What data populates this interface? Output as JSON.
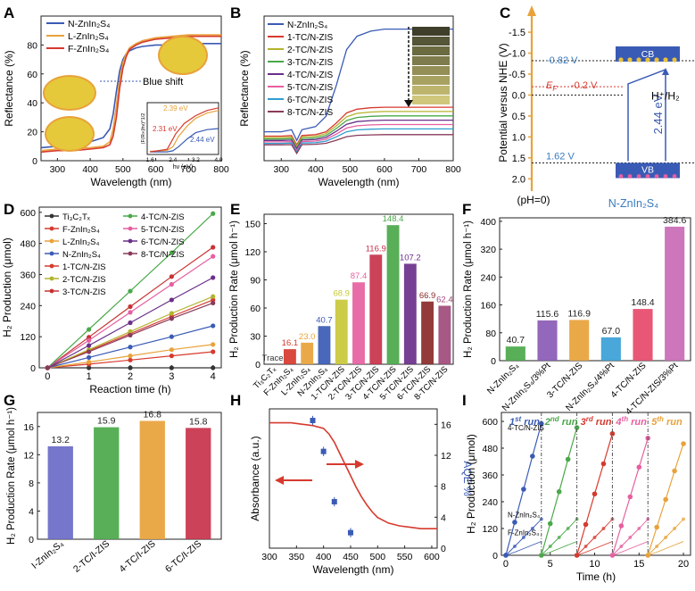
{
  "panel_letters": [
    "A",
    "B",
    "C",
    "D",
    "E",
    "F",
    "G",
    "H",
    "I"
  ],
  "chart_data": [
    {
      "panel": "A",
      "type": "line",
      "xlabel": "Wavelength (nm)",
      "ylabel": "Reflectance (%)",
      "xlim": [
        250,
        800
      ],
      "ylim": [
        0,
        100
      ],
      "xticks": [
        300,
        400,
        500,
        600,
        700,
        800
      ],
      "yticks": [
        0,
        20,
        40,
        60,
        80
      ],
      "legend_position": "top-left",
      "series": [
        {
          "name": "N-ZnIn₂S₄",
          "color": "#3a5bb5",
          "x": [
            250,
            300,
            350,
            400,
            440,
            460,
            470,
            480,
            490,
            500,
            510,
            520,
            540,
            560,
            600,
            650,
            700,
            750,
            800
          ],
          "y": [
            9,
            10,
            11,
            13,
            16,
            22,
            32,
            48,
            62,
            70,
            74,
            76,
            78,
            79,
            80,
            80,
            81,
            81,
            81
          ]
        },
        {
          "name": "L-ZnIn₂S₄",
          "color": "#e8a23a",
          "x": [
            250,
            300,
            350,
            400,
            440,
            460,
            470,
            480,
            490,
            500,
            510,
            520,
            540,
            560,
            600,
            650,
            700,
            750,
            800
          ],
          "y": [
            7,
            8,
            8,
            9,
            10,
            13,
            22,
            38,
            56,
            68,
            74,
            78,
            81,
            83,
            85,
            86,
            87,
            87,
            87
          ]
        },
        {
          "name": "F-ZnIn₂S₄",
          "color": "#d63a2e",
          "x": [
            250,
            300,
            350,
            400,
            440,
            460,
            470,
            480,
            490,
            500,
            510,
            520,
            540,
            560,
            600,
            650,
            700,
            750,
            800
          ],
          "y": [
            6,
            7,
            7,
            8,
            9,
            11,
            17,
            30,
            50,
            64,
            72,
            77,
            80,
            82,
            84,
            85,
            86,
            86,
            86
          ]
        }
      ],
      "annotations": [
        "Blue shift"
      ],
      "inset": {
        "xlabel": "hν (eV)",
        "ylabel": "(F(R∞)hν)^1/2",
        "xticks": [
          1.6,
          2.4,
          3.2,
          4.0
        ],
        "xlim": [
          1.5,
          4.0
        ],
        "labels": [
          {
            "text": "2.39 eV",
            "color": "#e8a23a"
          },
          {
            "text": "2.31 eV",
            "color": "#d63a2e"
          },
          {
            "text": "2.44 eV",
            "color": "#3a5bb5"
          }
        ],
        "series": [
          {
            "color": "#3a5bb5",
            "x": [
              1.6,
              2.2,
              2.4,
              2.6,
              2.9,
              3.2,
              3.6,
              4.0
            ],
            "y": [
              0.05,
              0.05,
              0.07,
              0.15,
              0.3,
              0.42,
              0.48,
              0.5
            ]
          },
          {
            "color": "#e8a23a",
            "x": [
              1.6,
              2.2,
              2.4,
              2.6,
              2.9,
              3.2,
              3.6,
              4.0
            ],
            "y": [
              0.06,
              0.08,
              0.15,
              0.35,
              0.55,
              0.7,
              0.8,
              0.85
            ]
          },
          {
            "color": "#d63a2e",
            "x": [
              1.6,
              2.2,
              2.3,
              2.5,
              2.8,
              3.2,
              3.6,
              4.0
            ],
            "y": [
              0.05,
              0.1,
              0.2,
              0.4,
              0.6,
              0.75,
              0.85,
              0.9
            ]
          }
        ]
      }
    },
    {
      "panel": "B",
      "type": "line",
      "xlabel": "Wavelength (nm)",
      "ylabel": "Reflectance (%)",
      "xlim": [
        250,
        800
      ],
      "ylim": [
        0,
        100
      ],
      "xticks": [
        300,
        400,
        500,
        600,
        700,
        800
      ],
      "legend_position": "top-left",
      "series": [
        {
          "name": "N-ZnIn₂S₄",
          "color": "#3a5bb5",
          "plateau": 91,
          "edge": 20
        },
        {
          "name": "1-TC/N-ZIS",
          "color": "#d63a2e",
          "plateau": 37,
          "edge": 17
        },
        {
          "name": "2-TC/N-ZIS",
          "color": "#b3b32e",
          "plateau": 34,
          "edge": 16
        },
        {
          "name": "3-TC/N-ZIS",
          "color": "#4aa84a",
          "plateau": 31,
          "edge": 15
        },
        {
          "name": "4-TC/N-ZIS",
          "color": "#6a2f8a",
          "plateau": 28,
          "edge": 14
        },
        {
          "name": "5-TC/N-ZIS",
          "color": "#e65fa0",
          "plateau": 25,
          "edge": 13
        },
        {
          "name": "6-TC/N-ZIS",
          "color": "#2e9fcf",
          "plateau": 22,
          "edge": 12
        },
        {
          "name": "8-TC/N-ZIS",
          "color": "#8a3a5a",
          "plateau": 18,
          "edge": 11
        }
      ]
    },
    {
      "panel": "C",
      "type": "diagram",
      "ylabel": "Potential versus NHE (V)",
      "ylim": [
        -1.8,
        2.1
      ],
      "yticks": [
        -1.5,
        -1.0,
        -0.5,
        0.0,
        0.5,
        1.0,
        1.5,
        2.0
      ],
      "cb_label": "CB",
      "vb_label": "VB",
      "cb_value": "-0.82 V",
      "ef_value": "-0.2 V",
      "ef_label": "E",
      "ef_sub": "F",
      "vb_value": "1.62 V",
      "gap_label": "2.44 eV",
      "h_label": "H⁺/H₂",
      "ph_label": "(pH=0)",
      "material_label": "N-ZnIn₂S₄",
      "cb_level": -0.82,
      "vb_level": 1.62,
      "ef_level": -0.2
    },
    {
      "panel": "D",
      "type": "scatter",
      "xlabel": "Reaction time (h)",
      "ylabel": "H₂ Production (μmol)",
      "xlim": [
        -0.2,
        4.2
      ],
      "ylim": [
        0,
        620
      ],
      "xticks": [
        0,
        1,
        2,
        3,
        4
      ],
      "yticks": [
        0,
        120,
        240,
        360,
        480,
        600
      ],
      "x": [
        0,
        1,
        2,
        3,
        4
      ],
      "series": [
        {
          "name": "Ti₃C₂Tₓ",
          "color": "#333333",
          "values": [
            0,
            0,
            0,
            0,
            0
          ]
        },
        {
          "name": "F-ZnIn₂S₄",
          "color": "#d63a2e",
          "values": [
            0,
            14,
            30,
            46,
            62
          ]
        },
        {
          "name": "L-ZnIn₂S₄",
          "color": "#e8a23a",
          "values": [
            0,
            22,
            46,
            70,
            90
          ]
        },
        {
          "name": "N-ZnIn₂S₄",
          "color": "#3a5bb5",
          "values": [
            0,
            40,
            80,
            120,
            162
          ]
        },
        {
          "name": "1-TC/N-ZIS",
          "color": "#d63a2e",
          "values": [
            0,
            66,
            132,
            198,
            262
          ]
        },
        {
          "name": "2-TC/N-ZIS",
          "color": "#b3b32e",
          "values": [
            0,
            70,
            140,
            210,
            275
          ]
        },
        {
          "name": "3-TC/N-ZIS",
          "color": "#c83232",
          "values": [
            0,
            118,
            236,
            352,
            465
          ]
        },
        {
          "name": "4-TC/N-ZIS",
          "color": "#4aa84a",
          "values": [
            0,
            148,
            296,
            444,
            595
          ]
        },
        {
          "name": "5-TC/N-ZIS",
          "color": "#e65fa0",
          "values": [
            0,
            106,
            214,
            322,
            430
          ]
        },
        {
          "name": "6-TC/N-ZIS",
          "color": "#6a2f8a",
          "values": [
            0,
            86,
            174,
            262,
            348
          ]
        },
        {
          "name": "8-TC/N-ZIS",
          "color": "#8a3a5a",
          "values": [
            0,
            62,
            126,
            190,
            250
          ]
        }
      ]
    },
    {
      "panel": "E",
      "type": "bar",
      "ylabel": "H₂ Production Rate (μmol h⁻¹)",
      "ylim": [
        0,
        160
      ],
      "yticks": [
        0,
        30,
        60,
        90,
        120,
        150
      ],
      "categories": [
        "Ti₃C₂Tₓ",
        "F-ZnIn₂S₄",
        "L-ZnIn₂S₄",
        "N-ZnIn₂S₄",
        "1-TC/N-ZIS",
        "2-TC/N-ZIS",
        "3-TC/N-ZIS",
        "4-TC/N-ZIS",
        "5-TC/N-ZIS",
        "6-TC/N-ZIS",
        "8-TC/N-ZIS"
      ],
      "values": [
        0,
        16.1,
        23.0,
        40.7,
        68.9,
        87.4,
        116.9,
        148.4,
        107.2,
        66.9,
        62.4
      ],
      "value_labels": [
        "Trace",
        "16.1",
        "23.0",
        "40.7",
        "68.9",
        "87.4",
        "116.9",
        "148.4",
        "107.2",
        "66.9",
        "62.4"
      ],
      "colors": [
        "#333333",
        "#d63a2e",
        "#e8a23a",
        "#3a5bb5",
        "#c8c838",
        "#e65fa0",
        "#c8324a",
        "#4aa84a",
        "#6a2f8a",
        "#8a2a2a",
        "#a04a7a"
      ]
    },
    {
      "panel": "F",
      "type": "bar",
      "ylabel": "H₂ Production Rate (μmol h⁻¹)",
      "ylim": [
        0,
        410
      ],
      "yticks": [
        0,
        80,
        160,
        240,
        320,
        400
      ],
      "categories": [
        "N-ZnIn₂S₄",
        "N-ZnIn₂S₄/3%Pt",
        "3-TC/N-ZIS",
        "N-ZnIn₂S₄/4%Pt",
        "4-TC/N-ZIS",
        "4-TC/N-ZIS/3%Pt"
      ],
      "values": [
        40.7,
        115.6,
        116.9,
        67.0,
        148.4,
        384.6
      ],
      "value_labels": [
        "40.7",
        "115.6",
        "116.9",
        "67.0",
        "148.4",
        "384.6"
      ],
      "colors": [
        "#4aa84a",
        "#8a5ab5",
        "#e8a23a",
        "#3a9fd6",
        "#e64a6a",
        "#c96ab5"
      ]
    },
    {
      "panel": "G",
      "type": "bar",
      "ylabel": "H₂ Production Rate (μmol h⁻¹)",
      "ylim": [
        0,
        18
      ],
      "yticks": [
        0,
        4,
        8,
        12,
        16
      ],
      "categories": [
        "I-ZnIn₂S₄",
        "2-TC/I-ZIS",
        "4-TC/I-ZIS",
        "6-TC/I-ZIS"
      ],
      "values": [
        13.2,
        15.9,
        16.8,
        15.8
      ],
      "value_labels": [
        "13.2",
        "15.9",
        "16.8",
        "15.8"
      ],
      "colors": [
        "#6a6ac8",
        "#4aa84a",
        "#e8a23a",
        "#c8324a"
      ]
    },
    {
      "panel": "H",
      "type": "line",
      "xlabel": "Wavelength (nm)",
      "ylabel": "Absorbance (a.u.)",
      "ylabel_right": "AQE %",
      "xlim": [
        300,
        610
      ],
      "xticks": [
        300,
        350,
        400,
        450,
        500,
        550,
        600
      ],
      "ylim_right": [
        0,
        18
      ],
      "yticks_right": [
        0,
        4,
        8,
        12,
        16
      ],
      "absorbance": {
        "x": [
          300,
          320,
          340,
          360,
          380,
          400,
          410,
          420,
          430,
          440,
          450,
          460,
          470,
          480,
          490,
          500,
          520,
          540,
          560,
          580,
          600,
          610
        ],
        "y": [
          0.9,
          0.9,
          0.9,
          0.89,
          0.88,
          0.86,
          0.82,
          0.76,
          0.68,
          0.6,
          0.52,
          0.44,
          0.37,
          0.31,
          0.26,
          0.22,
          0.18,
          0.16,
          0.15,
          0.14,
          0.14,
          0.14
        ]
      },
      "aqe": {
        "x": [
          380,
          400,
          420,
          450
        ],
        "y": [
          16.5,
          12.5,
          6.0,
          2.0
        ],
        "err": [
          0.6,
          0.6,
          0.6,
          0.6
        ]
      }
    },
    {
      "panel": "I",
      "type": "scatter",
      "xlabel": "Time (h)",
      "ylabel": "H₂ Production (μmol)",
      "xlim": [
        -0.5,
        20.8
      ],
      "ylim": [
        0,
        640
      ],
      "xticks": [
        0,
        5,
        10,
        15,
        20
      ],
      "yticks": [
        0,
        120,
        240,
        360,
        480,
        600
      ],
      "runs": [
        {
          "ordinal": "1",
          "sup": "st",
          "suffix": " run",
          "color": "#3a5bb5",
          "x0": 0
        },
        {
          "ordinal": "2",
          "sup": "nd",
          "suffix": " run",
          "color": "#4aa84a",
          "x0": 4
        },
        {
          "ordinal": "3",
          "sup": "rd",
          "suffix": " run",
          "color": "#d63a2e",
          "x0": 8
        },
        {
          "ordinal": "4",
          "sup": "th",
          "suffix": " run",
          "color": "#e65fa0",
          "x0": 12
        },
        {
          "ordinal": "5",
          "sup": "th",
          "suffix": " run",
          "color": "#e8a23a",
          "x0": 16
        }
      ],
      "series_labels": [
        "4-TC/N-ZIS",
        "N-ZnIn₂S₄",
        "F-ZnIn₂S₄"
      ],
      "run_values": [
        [
          0,
          148,
          296,
          444,
          590
        ],
        [
          0,
          142,
          285,
          430,
          572
        ],
        [
          0,
          138,
          275,
          410,
          545
        ],
        [
          0,
          132,
          262,
          395,
          525
        ],
        [
          0,
          126,
          250,
          378,
          500
        ]
      ],
      "nzis_values": [
        0,
        40,
        80,
        120,
        162
      ],
      "fzis_values": [
        0,
        14,
        30,
        46,
        62
      ]
    }
  ]
}
